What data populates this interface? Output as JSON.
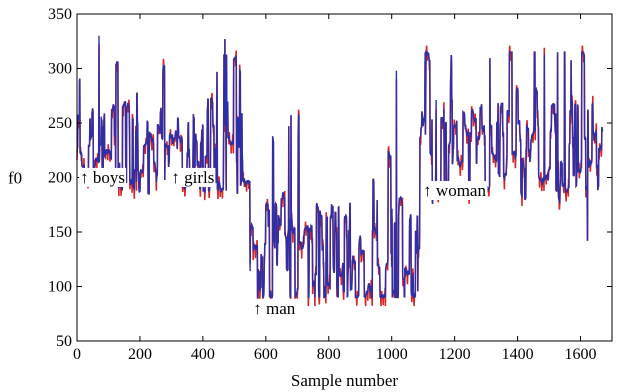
{
  "chart_data": {
    "type": "line",
    "xlabel": "Sample number",
    "ylabel": "f0",
    "xlim": [
      0,
      1700
    ],
    "ylim": [
      50,
      350
    ],
    "xticks": [
      "0",
      "200",
      "400",
      "600",
      "800",
      "1000",
      "1200",
      "1400",
      "1600"
    ],
    "yticks": [
      "50",
      "100",
      "150",
      "200",
      "250",
      "300",
      "350"
    ],
    "grid": false,
    "series_colors": [
      "#d62728",
      "#2b2fa8"
    ],
    "segments": [
      {
        "x_start": 0,
        "x_end": 550,
        "mean": 225,
        "low": 185,
        "high": 330
      },
      {
        "x_start": 550,
        "x_end": 1090,
        "mean": 125,
        "low": 90,
        "high": 300
      },
      {
        "x_start": 1090,
        "x_end": 1670,
        "mean": 225,
        "low": 140,
        "high": 315
      }
    ],
    "annotations": [
      {
        "text": "↑ boys",
        "x": 10,
        "y": 195
      },
      {
        "text": "↑ girls",
        "x": 300,
        "y": 195
      },
      {
        "text": "↑ man",
        "x": 560,
        "y": 75
      },
      {
        "text": "↑ woman",
        "x": 1100,
        "y": 183
      }
    ]
  }
}
